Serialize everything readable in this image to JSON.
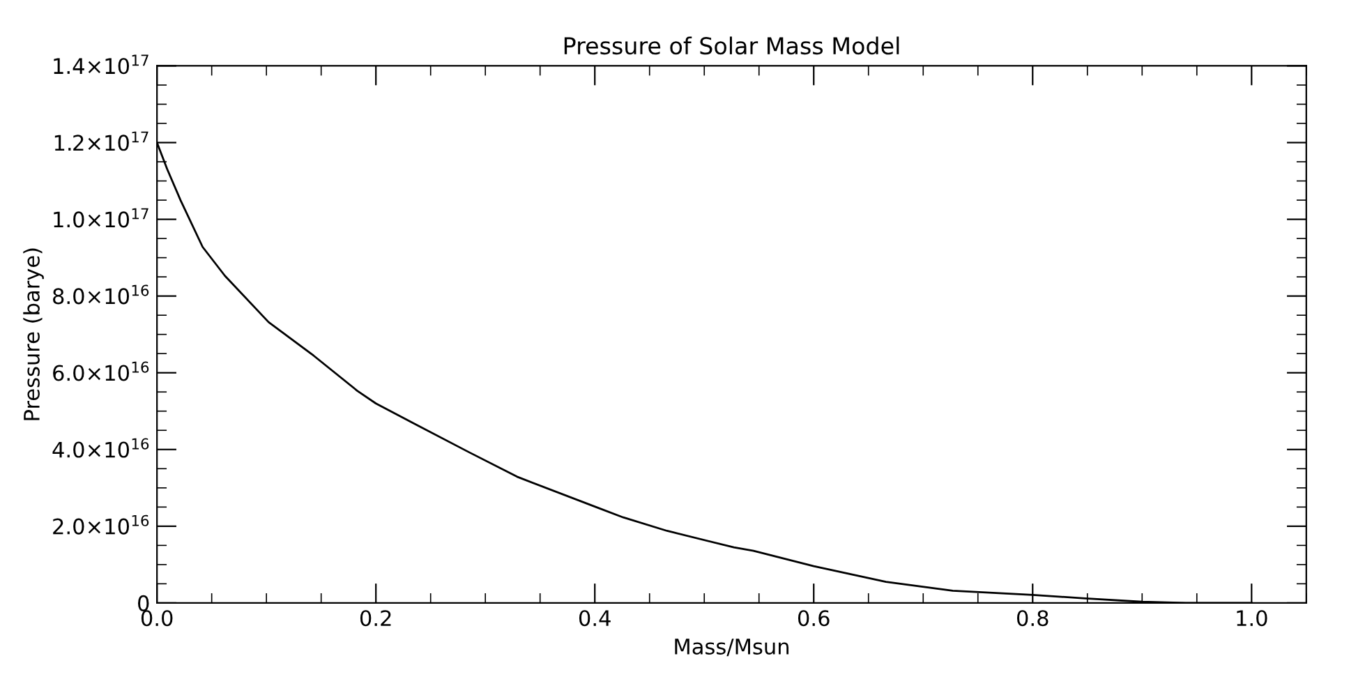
{
  "chart_data": {
    "type": "line",
    "title": "Pressure of Solar Mass Model",
    "xlabel": "Mass/Msun",
    "ylabel": "Pressure (barye)",
    "x": [
      0,
      0.0093,
      0.0215,
      0.0417,
      0.062,
      0.102,
      0.143,
      0.183,
      0.2,
      0.236,
      0.285,
      0.329,
      0.402,
      0.426,
      0.466,
      0.527,
      0.545,
      0.6,
      0.666,
      0.727,
      0.8,
      0.848,
      0.9,
      0.94,
      1.0
    ],
    "series": [
      {
        "color": "#000000",
        "values": [
          1.2e+17,
          1.131e+17,
          1.05e+17,
          9.28e+16,
          8.53e+16,
          7.32e+16,
          6.45e+16,
          5.53e+16,
          5.2e+16,
          4.66e+16,
          3.93e+16,
          3.29e+16,
          2.49e+16,
          2.23e+16,
          1.88e+16,
          1.45e+16,
          1.36e+16,
          9600000000000000.0,
          5500000000000000.0,
          3200000000000000.0,
          2100000000000000.0,
          1200000000000000.0,
          300000000000000.0,
          0,
          0
        ]
      }
    ],
    "xlim": [
      0,
      1.05
    ],
    "ylim": [
      0,
      1.4e+17
    ],
    "xticks": [
      {
        "value": 0,
        "label": "0.0"
      },
      0.2,
      0.4,
      0.6,
      0.8,
      {
        "value": 1,
        "label": "1.0"
      }
    ],
    "yticks": [
      0,
      {
        "value": 2e+16,
        "label": "2.0×10$^{16}$"
      },
      {
        "value": 4e+16,
        "label": "4.0×10$^{16}$"
      },
      {
        "value": 6e+16,
        "label": "6.0×10$^{16}$"
      },
      {
        "value": 8e+16,
        "label": "8.0×10$^{16}$"
      },
      {
        "value": 1e+17,
        "label": "1.0×10$^{17}$"
      },
      {
        "value": 1.2e+17,
        "label": "1.2×10$^{17}$"
      },
      {
        "value": 1.4e+17,
        "label": "1.4×10$^{17}$"
      }
    ],
    "grid": false,
    "marker": "none",
    "line_style": "solid"
  }
}
